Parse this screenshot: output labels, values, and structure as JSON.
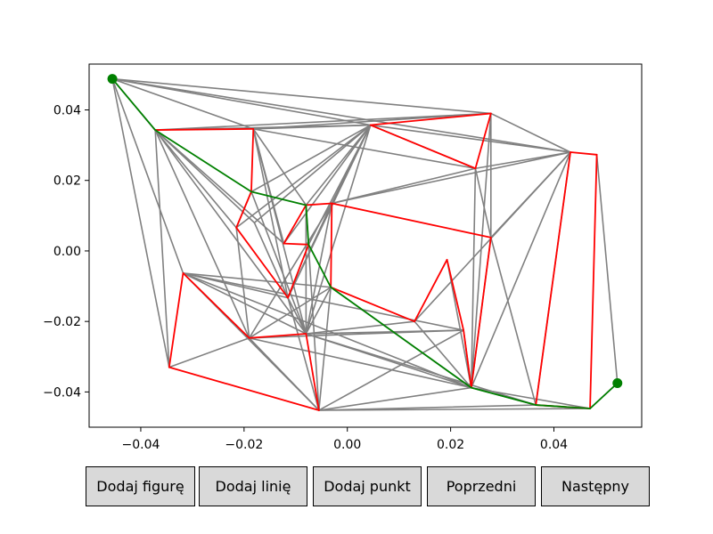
{
  "chart_data": {
    "type": "line",
    "xlim": [
      -0.05,
      0.057
    ],
    "ylim": [
      -0.05,
      0.053
    ],
    "grid": false,
    "xticks": [
      -0.04,
      -0.02,
      0.0,
      0.02,
      0.04
    ],
    "yticks": [
      -0.04,
      -0.02,
      0.0,
      0.02,
      0.04
    ],
    "xtick_labels": [
      "−0.04",
      "−0.02",
      "0.00",
      "0.02",
      "0.04"
    ],
    "ytick_labels": [
      "−0.04",
      "−0.02",
      "0.00",
      "0.02",
      "0.04"
    ],
    "colors": {
      "graph": "#808080",
      "obstacle": "#ff0000",
      "path": "#008000",
      "endpoint": "#008000"
    },
    "points": [
      [
        -0.0455,
        0.0488
      ],
      [
        -0.0372,
        0.0343
      ],
      [
        -0.0182,
        0.0346
      ],
      [
        0.0045,
        0.0357
      ],
      [
        0.0278,
        0.039
      ],
      [
        0.0248,
        0.0234
      ],
      [
        0.0432,
        0.028
      ],
      [
        0.0483,
        0.0273
      ],
      [
        -0.0186,
        0.0168
      ],
      [
        -0.008,
        0.013
      ],
      [
        -0.0215,
        0.0066
      ],
      [
        -0.018,
        0.008
      ],
      [
        -0.0123,
        0.0021
      ],
      [
        -0.0075,
        0.0018
      ],
      [
        -0.003,
        0.0135
      ],
      [
        -0.0032,
        -0.0103
      ],
      [
        0.0278,
        0.0038
      ],
      [
        -0.0115,
        -0.0133
      ],
      [
        -0.0318,
        -0.0063
      ],
      [
        0.013,
        -0.02
      ],
      [
        0.0193,
        -0.0025
      ],
      [
        0.0225,
        -0.0225
      ],
      [
        0.024,
        -0.0388
      ],
      [
        -0.019,
        -0.0247
      ],
      [
        -0.008,
        -0.0235
      ],
      [
        -0.0055,
        -0.0452
      ],
      [
        -0.0345,
        -0.033
      ],
      [
        0.0365,
        -0.0437
      ],
      [
        0.047,
        -0.0447
      ],
      [
        0.0523,
        -0.0375
      ]
    ],
    "obstacles": [
      [
        1,
        2,
        8,
        10,
        17,
        13,
        12,
        9,
        14,
        15,
        19,
        20,
        21,
        22,
        16,
        14
      ],
      [
        3,
        4,
        5,
        3
      ],
      [
        6,
        7,
        28,
        27,
        6
      ],
      [
        18,
        23,
        24,
        25,
        26,
        18
      ]
    ],
    "graph_edges": [
      [
        0,
        2
      ],
      [
        0,
        3
      ],
      [
        0,
        4
      ],
      [
        0,
        6
      ],
      [
        0,
        10
      ],
      [
        0,
        18
      ],
      [
        0,
        26
      ],
      [
        1,
        3
      ],
      [
        1,
        4
      ],
      [
        1,
        11
      ],
      [
        1,
        12
      ],
      [
        1,
        23
      ],
      [
        1,
        24
      ],
      [
        1,
        26
      ],
      [
        2,
        3
      ],
      [
        2,
        4
      ],
      [
        2,
        5
      ],
      [
        2,
        9
      ],
      [
        2,
        12
      ],
      [
        2,
        24
      ],
      [
        2,
        17
      ],
      [
        3,
        9
      ],
      [
        3,
        10
      ],
      [
        3,
        11
      ],
      [
        3,
        12
      ],
      [
        3,
        13
      ],
      [
        3,
        14
      ],
      [
        3,
        5
      ],
      [
        3,
        6
      ],
      [
        3,
        17
      ],
      [
        3,
        8
      ],
      [
        3,
        24
      ],
      [
        4,
        6
      ],
      [
        4,
        16
      ],
      [
        4,
        22
      ],
      [
        5,
        6
      ],
      [
        5,
        14
      ],
      [
        5,
        16
      ],
      [
        5,
        22
      ],
      [
        6,
        16
      ],
      [
        6,
        14
      ],
      [
        6,
        22
      ],
      [
        6,
        27
      ],
      [
        6,
        19
      ],
      [
        7,
        29
      ],
      [
        8,
        10
      ],
      [
        8,
        24
      ],
      [
        9,
        24
      ],
      [
        9,
        25
      ],
      [
        10,
        23
      ],
      [
        11,
        17
      ],
      [
        14,
        17
      ],
      [
        14,
        24
      ],
      [
        14,
        23
      ],
      [
        15,
        22
      ],
      [
        15,
        24
      ],
      [
        15,
        25
      ],
      [
        15,
        23
      ],
      [
        15,
        18
      ],
      [
        16,
        22
      ],
      [
        16,
        27
      ],
      [
        17,
        18
      ],
      [
        17,
        24
      ],
      [
        17,
        25
      ],
      [
        18,
        24
      ],
      [
        18,
        25
      ],
      [
        18,
        22
      ],
      [
        18,
        21
      ],
      [
        19,
        22
      ],
      [
        19,
        24
      ],
      [
        20,
        22
      ],
      [
        21,
        24
      ],
      [
        21,
        25
      ],
      [
        21,
        23
      ],
      [
        21,
        22
      ],
      [
        22,
        23
      ],
      [
        22,
        24
      ],
      [
        22,
        25
      ],
      [
        22,
        27
      ],
      [
        22,
        28
      ],
      [
        23,
        25
      ],
      [
        24,
        27
      ],
      [
        25,
        27
      ],
      [
        25,
        28
      ],
      [
        26,
        23
      ],
      [
        28,
        29
      ]
    ],
    "path": [
      0,
      1,
      8,
      9,
      13,
      15,
      22,
      27,
      28,
      29
    ],
    "endpoints": [
      0,
      29
    ]
  },
  "buttons": [
    {
      "label": "Dodaj figurę"
    },
    {
      "label": "Dodaj linię"
    },
    {
      "label": "Dodaj punkt"
    },
    {
      "label": "Poprzedni"
    },
    {
      "label": "Następny"
    }
  ]
}
